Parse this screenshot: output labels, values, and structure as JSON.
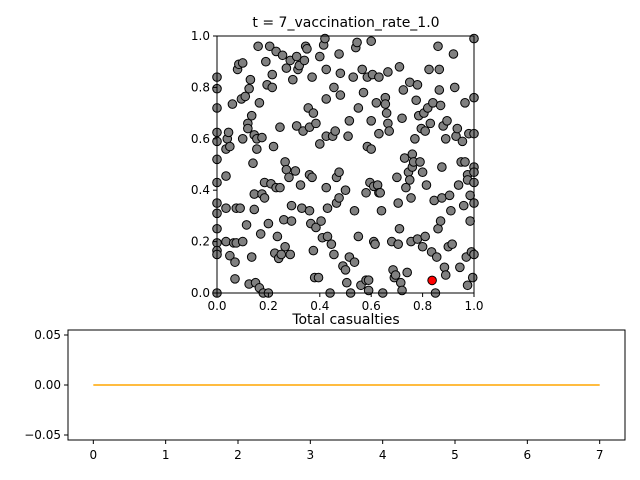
{
  "chart_data": [
    {
      "type": "scatter",
      "title": "t = 7_vaccination_rate_1.0",
      "xlim": [
        0.0,
        1.0
      ],
      "ylim": [
        0.0,
        1.0
      ],
      "xticks": [
        "0.0",
        "0.2",
        "0.4",
        "0.6",
        "0.8",
        "1.0"
      ],
      "yticks": [
        "0.0",
        "0.2",
        "0.4",
        "0.6",
        "0.8",
        "1.0"
      ],
      "grid": false,
      "colors": {
        "healthy": "#808080",
        "infected": "#ff0000",
        "edge": "#000000"
      },
      "infected_points": [
        [
          0.837,
          0.049
        ]
      ],
      "points": [
        [
          0.0,
          0.84
        ],
        [
          0.0,
          0.795
        ],
        [
          0.0,
          0.72
        ],
        [
          0.0,
          0.625
        ],
        [
          0.0,
          0.59
        ],
        [
          0.0,
          0.52
        ],
        [
          0.0,
          0.43
        ],
        [
          0.0,
          0.35
        ],
        [
          0.0,
          0.31
        ],
        [
          0.0,
          0.25
        ],
        [
          0.0,
          0.195
        ],
        [
          0.0,
          0.165
        ],
        [
          0.0,
          0.15
        ],
        [
          0.0,
          0.0
        ],
        [
          0.035,
          0.56
        ],
        [
          0.035,
          0.455
        ],
        [
          0.035,
          0.33
        ],
        [
          0.035,
          0.2
        ],
        [
          0.04,
          0.6
        ],
        [
          0.045,
          0.625
        ],
        [
          0.05,
          0.57
        ],
        [
          0.05,
          0.145
        ],
        [
          0.06,
          0.735
        ],
        [
          0.065,
          0.195
        ],
        [
          0.07,
          0.12
        ],
        [
          0.07,
          0.055
        ],
        [
          0.075,
          0.33
        ],
        [
          0.075,
          0.195
        ],
        [
          0.08,
          0.87
        ],
        [
          0.085,
          0.89
        ],
        [
          0.09,
          0.33
        ],
        [
          0.095,
          0.755
        ],
        [
          0.1,
          0.895
        ],
        [
          0.1,
          0.6
        ],
        [
          0.1,
          0.2
        ],
        [
          0.11,
          0.765
        ],
        [
          0.115,
          0.265
        ],
        [
          0.12,
          0.66
        ],
        [
          0.12,
          0.64
        ],
        [
          0.125,
          0.795
        ],
        [
          0.125,
          0.035
        ],
        [
          0.13,
          0.83
        ],
        [
          0.135,
          0.69
        ],
        [
          0.135,
          0.14
        ],
        [
          0.14,
          0.505
        ],
        [
          0.145,
          0.615
        ],
        [
          0.145,
          0.385
        ],
        [
          0.145,
          0.325
        ],
        [
          0.15,
          0.04
        ],
        [
          0.155,
          0.6
        ],
        [
          0.155,
          0.56
        ],
        [
          0.16,
          0.96
        ],
        [
          0.165,
          0.02
        ],
        [
          0.165,
          0.74
        ],
        [
          0.17,
          0.23
        ],
        [
          0.175,
          0.605
        ],
        [
          0.175,
          0.385
        ],
        [
          0.18,
          0.0
        ],
        [
          0.185,
          0.43
        ],
        [
          0.185,
          0.37
        ],
        [
          0.19,
          0.9
        ],
        [
          0.195,
          0.81
        ],
        [
          0.2,
          0.0
        ],
        [
          0.2,
          0.27
        ],
        [
          0.205,
          0.96
        ],
        [
          0.21,
          0.425
        ],
        [
          0.215,
          0.85
        ],
        [
          0.215,
          0.8
        ],
        [
          0.22,
          0.57
        ],
        [
          0.225,
          0.155
        ],
        [
          0.23,
          0.94
        ],
        [
          0.23,
          0.41
        ],
        [
          0.235,
          0.22
        ],
        [
          0.24,
          0.135
        ],
        [
          0.245,
          0.645
        ],
        [
          0.245,
          0.41
        ],
        [
          0.25,
          0.15
        ],
        [
          0.255,
          0.925
        ],
        [
          0.26,
          0.285
        ],
        [
          0.265,
          0.18
        ],
        [
          0.265,
          0.51
        ],
        [
          0.27,
          0.875
        ],
        [
          0.27,
          0.48
        ],
        [
          0.28,
          0.45
        ],
        [
          0.285,
          0.15
        ],
        [
          0.285,
          0.905
        ],
        [
          0.29,
          0.34
        ],
        [
          0.29,
          0.28
        ],
        [
          0.295,
          0.83
        ],
        [
          0.305,
          0.475
        ],
        [
          0.31,
          0.92
        ],
        [
          0.31,
          0.65
        ],
        [
          0.315,
          0.87
        ],
        [
          0.32,
          0.885
        ],
        [
          0.325,
          0.42
        ],
        [
          0.33,
          0.33
        ],
        [
          0.335,
          0.63
        ],
        [
          0.34,
          0.905
        ],
        [
          0.345,
          0.96
        ],
        [
          0.35,
          0.95
        ],
        [
          0.355,
          0.72
        ],
        [
          0.36,
          0.645
        ],
        [
          0.36,
          0.46
        ],
        [
          0.36,
          0.32
        ],
        [
          0.365,
          0.27
        ],
        [
          0.37,
          0.84
        ],
        [
          0.37,
          0.45
        ],
        [
          0.375,
          0.7
        ],
        [
          0.375,
          0.165
        ],
        [
          0.38,
          0.06
        ],
        [
          0.385,
          0.66
        ],
        [
          0.385,
          0.255
        ],
        [
          0.395,
          0.06
        ],
        [
          0.4,
          0.92
        ],
        [
          0.4,
          0.58
        ],
        [
          0.405,
          0.28
        ],
        [
          0.41,
          0.215
        ],
        [
          0.415,
          0.965
        ],
        [
          0.42,
          0.99
        ],
        [
          0.425,
          0.87
        ],
        [
          0.425,
          0.755
        ],
        [
          0.425,
          0.61
        ],
        [
          0.425,
          0.41
        ],
        [
          0.43,
          0.22
        ],
        [
          0.43,
          0.33
        ],
        [
          0.44,
          0.0
        ],
        [
          0.445,
          0.19
        ],
        [
          0.45,
          0.61
        ],
        [
          0.455,
          0.8
        ],
        [
          0.455,
          0.15
        ],
        [
          0.46,
          0.63
        ],
        [
          0.465,
          0.45
        ],
        [
          0.465,
          0.35
        ],
        [
          0.475,
          0.93
        ],
        [
          0.475,
          0.47
        ],
        [
          0.475,
          0.37
        ],
        [
          0.48,
          0.855
        ],
        [
          0.48,
          0.77
        ],
        [
          0.49,
          0.105
        ],
        [
          0.5,
          0.4
        ],
        [
          0.5,
          0.09
        ],
        [
          0.505,
          0.04
        ],
        [
          0.51,
          0.61
        ],
        [
          0.515,
          0.67
        ],
        [
          0.515,
          0.14
        ],
        [
          0.52,
          0.0
        ],
        [
          0.53,
          0.84
        ],
        [
          0.535,
          0.32
        ],
        [
          0.535,
          0.12
        ],
        [
          0.54,
          0.955
        ],
        [
          0.545,
          0.975
        ],
        [
          0.55,
          0.72
        ],
        [
          0.55,
          0.22
        ],
        [
          0.56,
          0.03
        ],
        [
          0.565,
          0.87
        ],
        [
          0.57,
          0.78
        ],
        [
          0.58,
          0.39
        ],
        [
          0.58,
          0.05
        ],
        [
          0.585,
          0.84
        ],
        [
          0.585,
          0.57
        ],
        [
          0.59,
          0.05
        ],
        [
          0.59,
          0.01
        ],
        [
          0.595,
          0.43
        ],
        [
          0.6,
          0.98
        ],
        [
          0.6,
          0.67
        ],
        [
          0.6,
          0.56
        ],
        [
          0.605,
          0.85
        ],
        [
          0.61,
          0.415
        ],
        [
          0.61,
          0.2
        ],
        [
          0.615,
          0.19
        ],
        [
          0.62,
          0.74
        ],
        [
          0.625,
          0.42
        ],
        [
          0.63,
          0.84
        ],
        [
          0.63,
          0.62
        ],
        [
          0.63,
          0.39
        ],
        [
          0.635,
          0.39
        ],
        [
          0.64,
          0.32
        ],
        [
          0.645,
          0.0
        ],
        [
          0.655,
          0.76
        ],
        [
          0.655,
          0.735
        ],
        [
          0.66,
          0.7
        ],
        [
          0.665,
          0.66
        ],
        [
          0.665,
          0.86
        ],
        [
          0.67,
          0.63
        ],
        [
          0.68,
          0.2
        ],
        [
          0.685,
          0.09
        ],
        [
          0.69,
          0.06
        ],
        [
          0.695,
          0.07
        ],
        [
          0.7,
          0.45
        ],
        [
          0.705,
          0.35
        ],
        [
          0.705,
          0.19
        ],
        [
          0.71,
          0.25
        ],
        [
          0.71,
          0.88
        ],
        [
          0.715,
          0.04
        ],
        [
          0.72,
          0.68
        ],
        [
          0.72,
          0.01
        ],
        [
          0.725,
          0.79
        ],
        [
          0.73,
          0.525
        ],
        [
          0.735,
          0.41
        ],
        [
          0.74,
          0.08
        ],
        [
          0.745,
          0.47
        ],
        [
          0.75,
          0.82
        ],
        [
          0.75,
          0.44
        ],
        [
          0.755,
          0.37
        ],
        [
          0.755,
          0.2
        ],
        [
          0.76,
          0.54
        ],
        [
          0.76,
          0.49
        ],
        [
          0.765,
          0.51
        ],
        [
          0.77,
          0.6
        ],
        [
          0.775,
          0.75
        ],
        [
          0.78,
          0.81
        ],
        [
          0.78,
          0.21
        ],
        [
          0.785,
          0.69
        ],
        [
          0.79,
          0.51
        ],
        [
          0.795,
          0.64
        ],
        [
          0.8,
          0.18
        ],
        [
          0.8,
          0.47
        ],
        [
          0.805,
          0.7
        ],
        [
          0.81,
          0.22
        ],
        [
          0.81,
          0.63
        ],
        [
          0.815,
          0.42
        ],
        [
          0.82,
          0.72
        ],
        [
          0.825,
          0.87
        ],
        [
          0.83,
          0.66
        ],
        [
          0.835,
          0.16
        ],
        [
          0.84,
          0.74
        ],
        [
          0.845,
          0.36
        ],
        [
          0.85,
          0.0
        ],
        [
          0.855,
          0.14
        ],
        [
          0.86,
          0.25
        ],
        [
          0.86,
          0.96
        ],
        [
          0.865,
          0.87
        ],
        [
          0.865,
          0.79
        ],
        [
          0.87,
          0.28
        ],
        [
          0.87,
          0.73
        ],
        [
          0.875,
          0.49
        ],
        [
          0.875,
          0.37
        ],
        [
          0.88,
          0.65
        ],
        [
          0.885,
          0.1
        ],
        [
          0.89,
          0.07
        ],
        [
          0.89,
          0.6
        ],
        [
          0.895,
          0.67
        ],
        [
          0.9,
          0.18
        ],
        [
          0.905,
          0.38
        ],
        [
          0.91,
          0.32
        ],
        [
          0.915,
          0.19
        ],
        [
          0.92,
          0.93
        ],
        [
          0.925,
          0.8
        ],
        [
          0.93,
          0.61
        ],
        [
          0.935,
          0.64
        ],
        [
          0.94,
          0.42
        ],
        [
          0.945,
          0.1
        ],
        [
          0.95,
          0.51
        ],
        [
          0.955,
          0.59
        ],
        [
          0.96,
          0.34
        ],
        [
          0.965,
          0.74
        ],
        [
          0.965,
          0.51
        ],
        [
          0.97,
          0.14
        ],
        [
          0.975,
          0.46
        ],
        [
          0.975,
          0.44
        ],
        [
          0.975,
          0.03
        ],
        [
          0.98,
          0.62
        ],
        [
          0.985,
          0.38
        ],
        [
          0.985,
          0.28
        ],
        [
          0.99,
          0.16
        ],
        [
          0.995,
          0.06
        ],
        [
          1.0,
          0.99
        ],
        [
          1.0,
          0.76
        ],
        [
          1.0,
          0.62
        ],
        [
          1.0,
          0.49
        ],
        [
          1.0,
          0.47
        ],
        [
          1.0,
          0.43
        ],
        [
          1.0,
          0.35
        ],
        [
          1.0,
          0.15
        ]
      ]
    },
    {
      "type": "line",
      "title": "Total casualties",
      "xticks": [
        "0",
        "1",
        "2",
        "3",
        "4",
        "5",
        "6",
        "7"
      ],
      "yticks": [
        "0.05",
        "0.00",
        "−0.05"
      ],
      "xlim": [
        -0.35,
        7.35
      ],
      "ylim": [
        -0.055,
        0.055
      ],
      "grid": false,
      "series": [
        {
          "color": "#ffa500",
          "x": [
            0,
            1,
            2,
            3,
            4,
            5,
            6,
            7
          ],
          "y": [
            0,
            0,
            0,
            0,
            0,
            0,
            0,
            0
          ]
        }
      ]
    }
  ]
}
